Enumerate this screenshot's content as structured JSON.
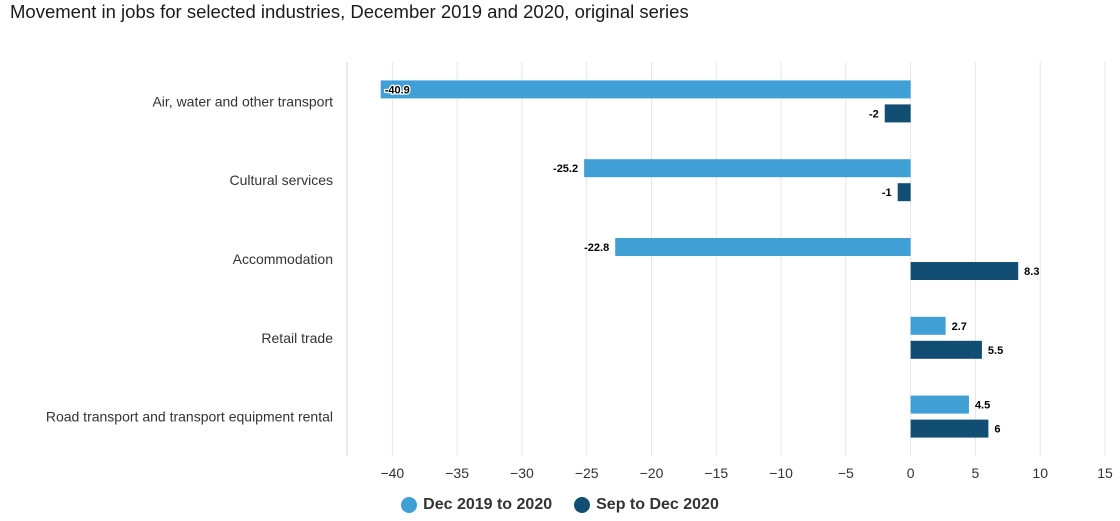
{
  "title": "Movement in jobs for selected industries, December 2019 and 2020, original series",
  "chart_data": {
    "type": "bar",
    "orientation": "horizontal",
    "categories": [
      "Air, water and other transport",
      "Cultural services",
      "Accommodation",
      "Retail trade",
      "Road transport and transport equipment rental"
    ],
    "series": [
      {
        "name": "Dec 2019 to 2020",
        "color": "#40a0d6",
        "values": [
          -40.9,
          -25.2,
          -22.8,
          2.7,
          4.5
        ]
      },
      {
        "name": "Sep to Dec 2020",
        "color": "#124d73",
        "values": [
          -2,
          -1,
          8.3,
          5.5,
          6
        ]
      }
    ],
    "xlim": [
      -43.5,
      15
    ],
    "xticks": [
      -40,
      -35,
      -30,
      -25,
      -20,
      -15,
      -10,
      -5,
      0,
      5,
      10,
      15
    ],
    "xtick_labels": [
      "−40",
      "−35",
      "−30",
      "−25",
      "−20",
      "−15",
      "−10",
      "−5",
      "0",
      "5",
      "10",
      "15"
    ],
    "data_labels": [
      [
        "-40.9",
        "-25.2",
        "-22.8",
        "2.7",
        "4.5"
      ],
      [
        "-2",
        "-1",
        "8.3",
        "5.5",
        "6"
      ]
    ],
    "grid": true,
    "legend_position": "bottom-center"
  }
}
